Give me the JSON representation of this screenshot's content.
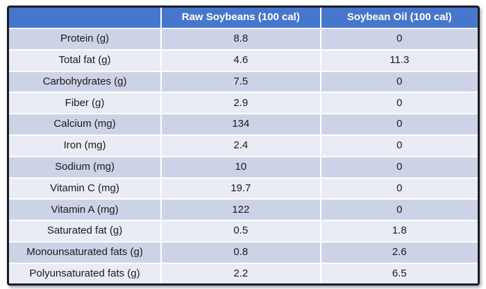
{
  "colors": {
    "header_bg": "#4777cd",
    "header_text": "#ffffff",
    "row_odd_bg": "#cdd3e7",
    "row_even_bg": "#e9ebf5",
    "body_text": "#1a1a1a",
    "grid_line": "#ffffff",
    "outer_border": "#1b1b20",
    "page_bg": "#ffffff"
  },
  "chart_data": {
    "type": "table",
    "columns": [
      "",
      "Raw Soybeans (100 cal)",
      "Soybean Oil (100 cal)"
    ],
    "rows": [
      [
        "Protein (g)",
        "8.8",
        "0"
      ],
      [
        "Total fat (g)",
        "4.6",
        "11.3"
      ],
      [
        "Carbohydrates (g)",
        "7.5",
        "0"
      ],
      [
        "Fiber (g)",
        "2.9",
        "0"
      ],
      [
        "Calcium (mg)",
        "134",
        "0"
      ],
      [
        "Iron (mg)",
        "2.4",
        "0"
      ],
      [
        "Sodium (mg)",
        "10",
        "0"
      ],
      [
        "Vitamin C (mg)",
        "19.7",
        "0"
      ],
      [
        "Vitamin A (mg)",
        "122",
        "0"
      ],
      [
        "Saturated fat (g)",
        "0.5",
        "1.8"
      ],
      [
        "Monounsaturated fats (g)",
        "0.8",
        "2.6"
      ],
      [
        "Polyunsaturated fats (g)",
        "2.2",
        "6.5"
      ]
    ]
  }
}
